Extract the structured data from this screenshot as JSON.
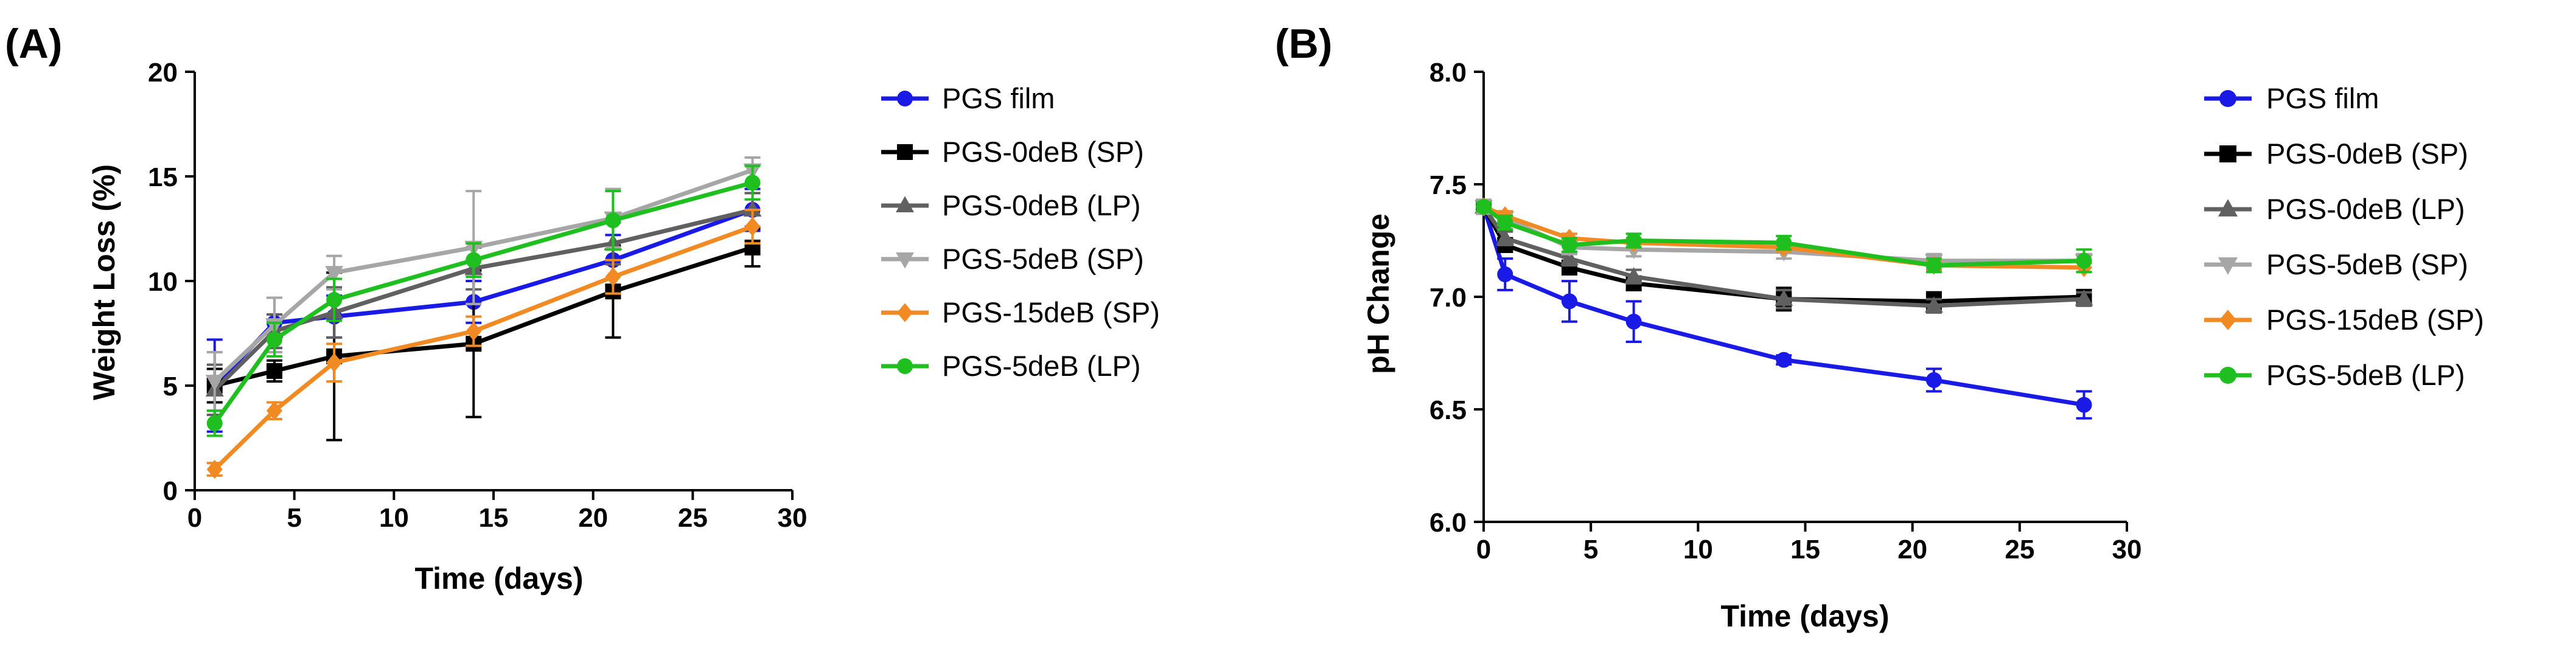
{
  "chart_data": [
    {
      "type": "line",
      "panel_label": "(A)",
      "title": "",
      "xlabel": "Time (days)",
      "ylabel": "Weight Loss (%)",
      "xlim": [
        0,
        30
      ],
      "ylim": [
        0,
        20
      ],
      "xticks": [
        0,
        5,
        10,
        15,
        20,
        25,
        30
      ],
      "yticks": [
        0,
        5,
        10,
        15,
        20
      ],
      "grid": false,
      "legend_position": "right",
      "series": [
        {
          "name": "PGS film",
          "color": "#1a1ae6",
          "marker": "circle",
          "x": [
            1,
            4,
            7,
            14,
            21,
            28
          ],
          "y": [
            5.0,
            8.0,
            8.3,
            9.0,
            11.0,
            13.4
          ],
          "err": [
            2.2,
            1.2,
            1.0,
            1.0,
            1.2,
            1.0
          ]
        },
        {
          "name": "PGS-0deB (SP)",
          "color": "#000000",
          "marker": "square",
          "x": [
            1,
            4,
            7,
            14,
            21,
            28
          ],
          "y": [
            5.0,
            5.7,
            6.4,
            7.0,
            9.5,
            11.6
          ],
          "err": [
            0.8,
            0.5,
            4.0,
            3.5,
            2.2,
            0.9
          ]
        },
        {
          "name": "PGS-0deB (LP)",
          "color": "#606060",
          "marker": "triangle-up",
          "x": [
            1,
            4,
            7,
            14,
            21,
            28
          ],
          "y": [
            4.8,
            7.6,
            8.5,
            10.6,
            11.8,
            13.4
          ],
          "err": [
            1.2,
            0.8,
            1.2,
            1.0,
            1.0,
            0.8
          ]
        },
        {
          "name": "PGS-5deB (SP)",
          "color": "#a6a6a6",
          "marker": "triangle-down",
          "x": [
            1,
            4,
            7,
            14,
            21,
            28
          ],
          "y": [
            5.2,
            7.9,
            10.4,
            11.6,
            13.0,
            15.3
          ],
          "err": [
            1.4,
            1.3,
            0.8,
            2.7,
            1.4,
            0.6
          ]
        },
        {
          "name": "PGS-15deB (SP)",
          "color": "#f28a24",
          "marker": "diamond",
          "x": [
            1,
            4,
            7,
            14,
            21,
            28
          ],
          "y": [
            1.0,
            3.8,
            6.1,
            7.6,
            10.2,
            12.6
          ],
          "err": [
            0.3,
            0.4,
            0.9,
            0.7,
            0.8,
            0.8
          ]
        },
        {
          "name": "PGS-5deB (LP)",
          "color": "#1fbf1f",
          "marker": "circle",
          "x": [
            1,
            4,
            7,
            14,
            21,
            28
          ],
          "y": [
            3.2,
            7.2,
            9.1,
            11.0,
            12.9,
            14.7
          ],
          "err": [
            0.6,
            0.8,
            1.0,
            0.8,
            1.4,
            0.8
          ]
        }
      ]
    },
    {
      "type": "line",
      "panel_label": "(B)",
      "title": "",
      "xlabel": "Time (days)",
      "ylabel": "pH Change",
      "xlim": [
        0,
        30
      ],
      "ylim": [
        6.0,
        8.0
      ],
      "xticks": [
        0,
        5,
        10,
        15,
        20,
        25,
        30
      ],
      "yticks": [
        "6.0",
        "6.5",
        "7.0",
        "7.5",
        "8.0"
      ],
      "grid": false,
      "legend_position": "right",
      "series": [
        {
          "name": "PGS film",
          "color": "#1a1ae6",
          "marker": "circle",
          "x": [
            0,
            1,
            4,
            7,
            14,
            21,
            28
          ],
          "y": [
            7.4,
            7.1,
            6.98,
            6.89,
            6.72,
            6.63,
            6.52
          ],
          "err": [
            0.03,
            0.07,
            0.09,
            0.09,
            0.02,
            0.05,
            0.06
          ]
        },
        {
          "name": "PGS-0deB (SP)",
          "color": "#000000",
          "marker": "square",
          "x": [
            0,
            1,
            4,
            7,
            14,
            21,
            28
          ],
          "y": [
            7.4,
            7.23,
            7.13,
            7.06,
            6.99,
            6.98,
            7.0
          ],
          "err": [
            0.03,
            0.03,
            0.03,
            0.03,
            0.05,
            0.04,
            0.03
          ]
        },
        {
          "name": "PGS-0deB (LP)",
          "color": "#606060",
          "marker": "triangle-up",
          "x": [
            0,
            1,
            4,
            7,
            14,
            21,
            28
          ],
          "y": [
            7.4,
            7.26,
            7.17,
            7.09,
            6.99,
            6.96,
            6.99
          ],
          "err": [
            0.03,
            0.03,
            0.03,
            0.03,
            0.04,
            0.03,
            0.03
          ]
        },
        {
          "name": "PGS-5deB (SP)",
          "color": "#a6a6a6",
          "marker": "triangle-down",
          "x": [
            0,
            1,
            4,
            7,
            14,
            21,
            28
          ],
          "y": [
            7.4,
            7.35,
            7.22,
            7.21,
            7.2,
            7.16,
            7.16
          ],
          "err": [
            0.03,
            0.03,
            0.03,
            0.03,
            0.03,
            0.03,
            0.03
          ]
        },
        {
          "name": "PGS-15deB (SP)",
          "color": "#f28a24",
          "marker": "diamond",
          "x": [
            0,
            1,
            4,
            7,
            14,
            21,
            28
          ],
          "y": [
            7.4,
            7.36,
            7.26,
            7.24,
            7.22,
            7.14,
            7.13
          ],
          "err": [
            0.02,
            0.02,
            0.02,
            0.02,
            0.02,
            0.02,
            0.02
          ]
        },
        {
          "name": "PGS-5deB (LP)",
          "color": "#1fbf1f",
          "marker": "circle",
          "x": [
            0,
            1,
            4,
            7,
            14,
            21,
            28
          ],
          "y": [
            7.4,
            7.33,
            7.23,
            7.25,
            7.24,
            7.14,
            7.16
          ],
          "err": [
            0.02,
            0.03,
            0.03,
            0.03,
            0.03,
            0.03,
            0.05
          ]
        }
      ]
    }
  ]
}
